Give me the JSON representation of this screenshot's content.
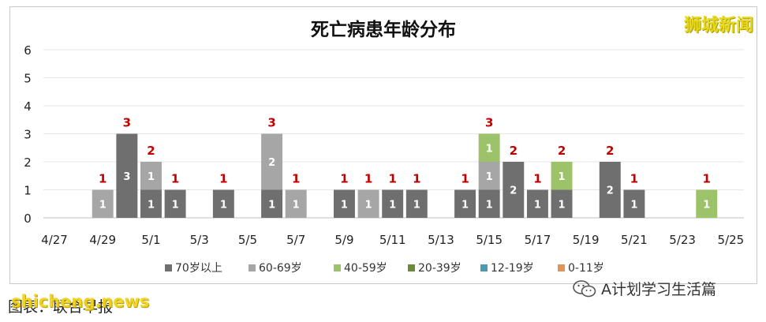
{
  "brand": "狮城新闻",
  "source": "图表：联合早报",
  "site": "shicheng.news",
  "wechat": "A计划学习生活篇",
  "chart_data": {
    "type": "bar",
    "stacked": true,
    "title": "死亡病患年龄分布",
    "ylim": [
      0,
      6
    ],
    "yticks": [
      0,
      1,
      2,
      3,
      4,
      5,
      6
    ],
    "x": [
      "4/27",
      "4/28",
      "4/29",
      "4/30",
      "5/1",
      "5/2",
      "5/3",
      "5/4",
      "5/5",
      "5/6",
      "5/7",
      "5/8",
      "5/9",
      "5/10",
      "5/11",
      "5/12",
      "5/13",
      "5/14",
      "5/15",
      "5/16",
      "5/17",
      "5/18",
      "5/19",
      "5/20",
      "5/21",
      "5/22",
      "5/23",
      "5/24",
      "5/25"
    ],
    "xtick_labels": [
      "4/27",
      "4/29",
      "5/1",
      "5/3",
      "5/5",
      "5/7",
      "5/9",
      "5/11",
      "5/13",
      "5/15",
      "5/17",
      "5/19",
      "5/21",
      "5/23",
      "5/25"
    ],
    "series": [
      {
        "name": "70岁以上",
        "color": "#6f6f6f",
        "values": [
          0,
          0,
          0,
          3,
          1,
          1,
          0,
          1,
          0,
          1,
          0,
          0,
          1,
          0,
          1,
          1,
          0,
          1,
          1,
          2,
          1,
          1,
          0,
          2,
          1,
          0,
          0,
          0,
          0
        ]
      },
      {
        "name": "60-69岁",
        "color": "#a6a6a6",
        "values": [
          0,
          0,
          1,
          0,
          1,
          0,
          0,
          0,
          0,
          2,
          1,
          0,
          0,
          1,
          0,
          0,
          0,
          0,
          1,
          0,
          0,
          0,
          0,
          0,
          0,
          0,
          0,
          0,
          0
        ]
      },
      {
        "name": "40-59岁",
        "color": "#9cc26a",
        "values": [
          0,
          0,
          0,
          0,
          0,
          0,
          0,
          0,
          0,
          0,
          0,
          0,
          0,
          0,
          0,
          0,
          0,
          0,
          1,
          0,
          0,
          1,
          0,
          0,
          0,
          0,
          0,
          1,
          0
        ]
      },
      {
        "name": "20-39岁",
        "color": "#6b8a3a",
        "values": [
          0,
          0,
          0,
          0,
          0,
          0,
          0,
          0,
          0,
          0,
          0,
          0,
          0,
          0,
          0,
          0,
          0,
          0,
          0,
          0,
          0,
          0,
          0,
          0,
          0,
          0,
          0,
          0,
          0
        ]
      },
      {
        "name": "12-19岁",
        "color": "#4a9bb0",
        "values": [
          0,
          0,
          0,
          0,
          0,
          0,
          0,
          0,
          0,
          0,
          0,
          0,
          0,
          0,
          0,
          0,
          0,
          0,
          0,
          0,
          0,
          0,
          0,
          0,
          0,
          0,
          0,
          0,
          0
        ]
      },
      {
        "name": "0-11岁",
        "color": "#e0945a",
        "values": [
          0,
          0,
          0,
          0,
          0,
          0,
          0,
          0,
          0,
          0,
          0,
          0,
          0,
          0,
          0,
          0,
          0,
          0,
          0,
          0,
          0,
          0,
          0,
          0,
          0,
          0,
          0,
          0,
          0
        ]
      }
    ],
    "totals": [
      0,
      0,
      1,
      3,
      2,
      1,
      0,
      1,
      0,
      3,
      1,
      0,
      1,
      1,
      1,
      1,
      0,
      1,
      3,
      2,
      1,
      2,
      0,
      2,
      1,
      0,
      0,
      1,
      0
    ],
    "total_label_color": "#c00000",
    "grid": true,
    "legend_position": "bottom"
  }
}
